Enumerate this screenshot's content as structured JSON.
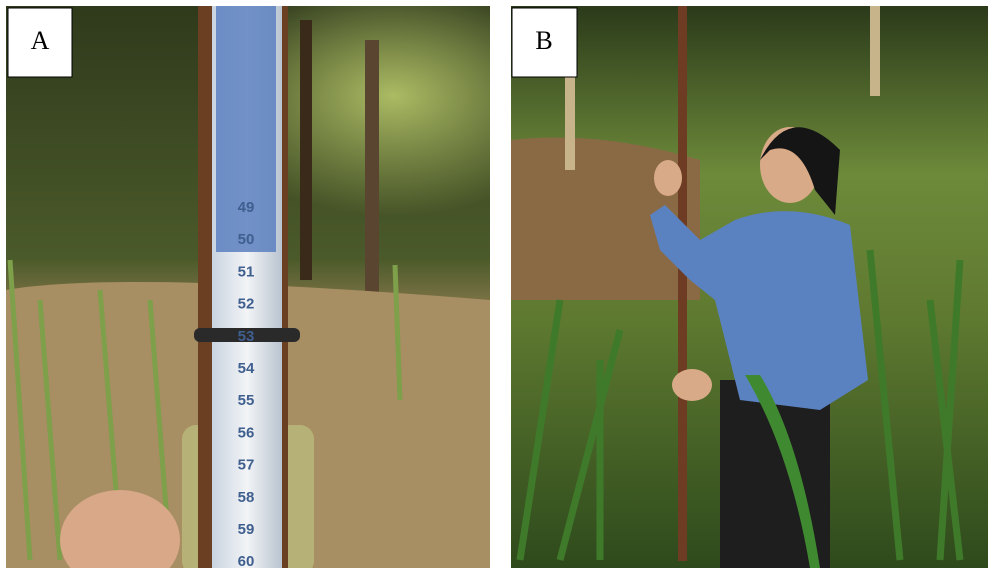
{
  "panels": [
    {
      "label": "A",
      "scale_labels": [
        "49",
        "50",
        "51",
        "52",
        "53",
        "54",
        "55",
        "56",
        "57",
        "58",
        "59",
        "60"
      ]
    },
    {
      "label": "B"
    }
  ]
}
